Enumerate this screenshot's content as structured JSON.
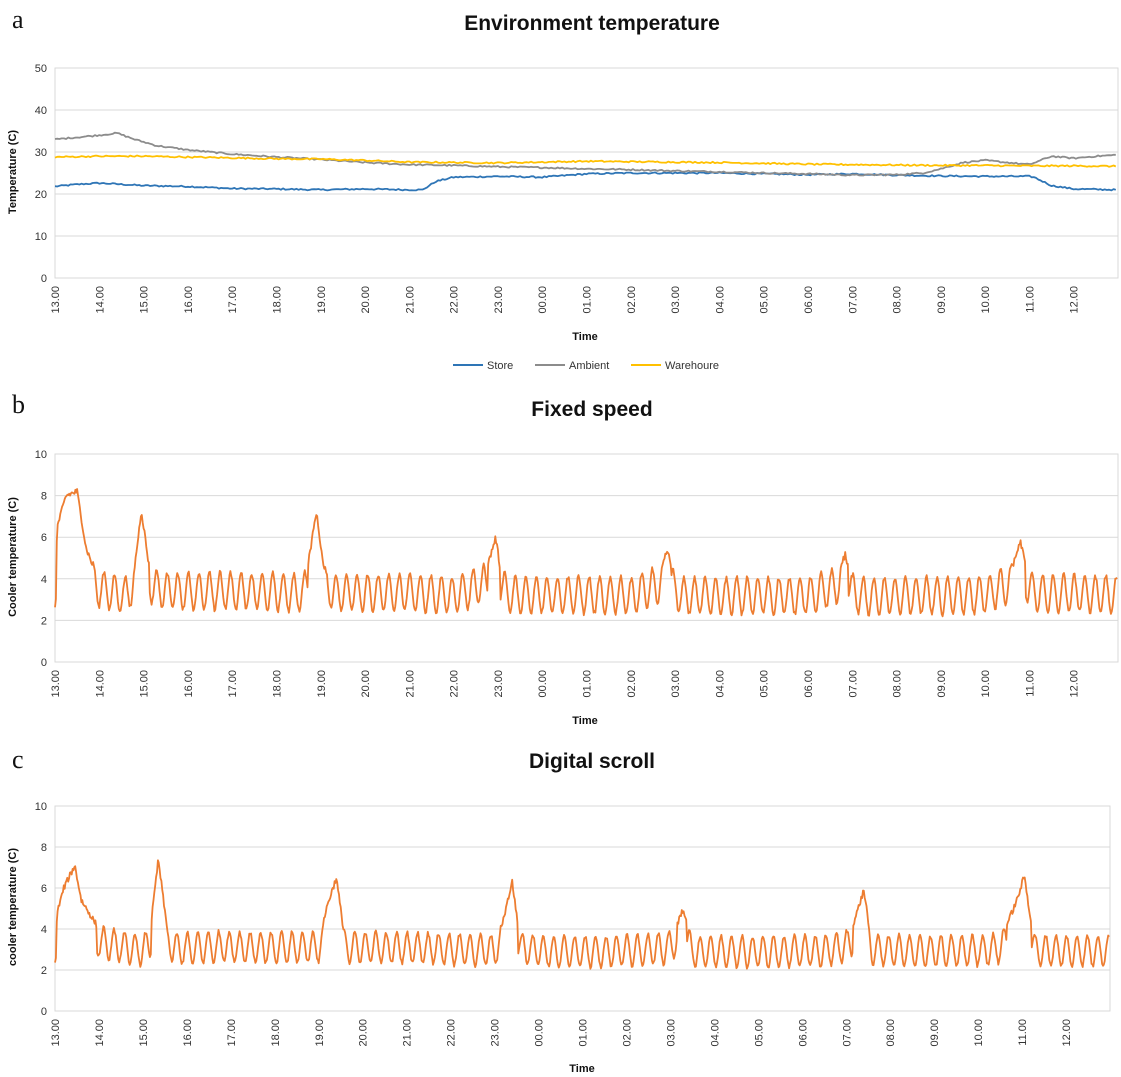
{
  "chart_data": [
    {
      "panel": "a",
      "type": "line",
      "title": "Environment temperature",
      "xlabel": "Time",
      "ylabel": "Temperature (C)",
      "ylim": [
        0,
        50
      ],
      "yticks": [
        0,
        10,
        20,
        30,
        40,
        50
      ],
      "categories": [
        "13.00",
        "14.00",
        "15.00",
        "16.00",
        "17.00",
        "18.00",
        "19.00",
        "20.00",
        "21.00",
        "22.00",
        "23.00",
        "00.00",
        "01.00",
        "02.00",
        "03.00",
        "04.00",
        "05.00",
        "06.00",
        "07.00",
        "08.00",
        "09.00",
        "10.00",
        "11.00",
        "12.00"
      ],
      "grid": true,
      "legend_position": "bottom",
      "series": [
        {
          "name": "Store",
          "color": "#2e75b6",
          "x": [
            13.0,
            13.5,
            14.0,
            14.5,
            15.0,
            16.0,
            17.0,
            18.0,
            19.0,
            20.0,
            21.0,
            21.3,
            21.6,
            22.0,
            23.0,
            24.0,
            25.0,
            26.0,
            27.0,
            28.0,
            29.0,
            30.0,
            31.0,
            32.0,
            33.0,
            34.0,
            35.0,
            35.1,
            35.5,
            36.0,
            36.98
          ],
          "y": [
            21.8,
            22.3,
            22.6,
            22.3,
            22.0,
            21.8,
            21.3,
            21.2,
            21.0,
            21.2,
            21.0,
            21.0,
            23.0,
            24.0,
            24.2,
            24.0,
            24.8,
            25.0,
            25.0,
            25.0,
            24.8,
            24.6,
            24.8,
            24.5,
            24.3,
            24.2,
            24.2,
            24.0,
            22.0,
            21.2,
            21.0
          ]
        },
        {
          "name": "Ambient",
          "color": "#8c8c8c",
          "x": [
            13.0,
            13.5,
            14.0,
            14.4,
            14.8,
            15.3,
            16.0,
            17.0,
            18.0,
            19.0,
            20.0,
            21.0,
            22.0,
            23.0,
            24.0,
            25.0,
            26.0,
            27.0,
            28.0,
            29.0,
            30.0,
            31.0,
            32.0,
            32.6,
            33.0,
            33.5,
            34.0,
            34.5,
            35.0,
            35.5,
            36.0,
            36.5,
            36.98
          ],
          "y": [
            33.0,
            33.5,
            34.0,
            34.5,
            33.0,
            31.5,
            30.5,
            29.5,
            28.8,
            28.2,
            27.5,
            27.0,
            26.8,
            26.5,
            26.3,
            26.0,
            25.8,
            25.5,
            25.3,
            25.0,
            24.8,
            24.5,
            24.6,
            25.0,
            26.0,
            27.5,
            28.0,
            27.5,
            27.0,
            29.0,
            28.5,
            29.0,
            29.3
          ]
        },
        {
          "name": "Warehoure",
          "color": "#ffc000",
          "x": [
            13.0,
            14.0,
            15.0,
            16.0,
            17.0,
            18.0,
            19.0,
            20.0,
            21.0,
            22.0,
            23.0,
            24.0,
            25.0,
            26.0,
            27.0,
            28.0,
            29.0,
            30.0,
            31.0,
            32.0,
            33.0,
            34.0,
            35.0,
            36.0,
            36.98
          ],
          "y": [
            28.8,
            29.0,
            29.0,
            28.8,
            28.6,
            28.4,
            28.3,
            28.0,
            27.6,
            27.5,
            27.4,
            27.6,
            27.8,
            27.7,
            27.6,
            27.5,
            27.3,
            27.1,
            27.0,
            26.9,
            26.8,
            26.8,
            26.7,
            26.7,
            26.6
          ]
        }
      ]
    },
    {
      "panel": "b",
      "type": "line",
      "title": "Fixed speed",
      "xlabel": "Time",
      "ylabel": "Cooler temperature (C)",
      "ylim": [
        0,
        10
      ],
      "yticks": [
        0,
        2,
        4,
        6,
        8,
        10
      ],
      "categories": [
        "13.00",
        "14.00",
        "15.00",
        "16.00",
        "17.00",
        "18.00",
        "19.00",
        "20.00",
        "21.00",
        "22.00",
        "23.00",
        "00.00",
        "01.00",
        "02.00",
        "03.00",
        "04.00",
        "05.00",
        "06.00",
        "07.00",
        "08.00",
        "09.00",
        "10.00",
        "11.00",
        "12.00"
      ],
      "grid": true,
      "series": [
        {
          "name": "",
          "color": "#ed7d31",
          "x": [
            13.0,
            13.05,
            13.25,
            13.5,
            13.7,
            14.0,
            14.4,
            14.55,
            14.8,
            14.95,
            15.15,
            15.4,
            16.0,
            17.0,
            18.0,
            18.6,
            18.9,
            19.1,
            19.3,
            20.0,
            21.0,
            22.0,
            22.75,
            22.95,
            23.1,
            23.3,
            24.0,
            25.0,
            26.0,
            26.6,
            26.85,
            27.0,
            27.2,
            28.0,
            29.0,
            30.0,
            30.6,
            30.85,
            31.0,
            31.2,
            32.0,
            33.0,
            34.0,
            34.6,
            34.8,
            35.0,
            35.2,
            36.0,
            36.98
          ],
          "y": [
            2.8,
            6.5,
            8.0,
            8.2,
            5.5,
            3.8,
            3.2,
            2.7,
            4.6,
            7.3,
            4.2,
            3.6,
            3.4,
            3.5,
            3.4,
            3.2,
            7.2,
            4.0,
            3.3,
            3.3,
            3.3,
            3.0,
            4.5,
            6.0,
            3.8,
            3.0,
            3.0,
            3.0,
            2.9,
            4.2,
            5.4,
            3.4,
            2.9,
            2.9,
            2.9,
            2.9,
            4.0,
            5.2,
            3.4,
            2.9,
            2.9,
            2.9,
            3.0,
            4.5,
            5.8,
            3.8,
            3.2,
            3.2,
            3.1
          ],
          "oscillation": {
            "low": 2.3,
            "high": 4.3
          }
        }
      ]
    },
    {
      "panel": "c",
      "type": "line",
      "title": "Digital scroll",
      "xlabel": "Time",
      "ylabel": "cooler  temperature (C)",
      "ylim": [
        0,
        10
      ],
      "yticks": [
        0,
        2,
        4,
        6,
        8,
        10
      ],
      "categories": [
        "13.00",
        "14.00",
        "15.00",
        "16.00",
        "17.00",
        "18.00",
        "19.00",
        "20.00",
        "21.00",
        "22.00",
        "23.00",
        "00.00",
        "01.00",
        "02.00",
        "03.00",
        "04.00",
        "05.00",
        "06.00",
        "07.00",
        "08.00",
        "09.00",
        "10.00",
        "11.00",
        "12.00"
      ],
      "grid": true,
      "series": [
        {
          "name": "",
          "color": "#ed7d31",
          "x": [
            13.0,
            13.05,
            13.2,
            13.45,
            13.6,
            14.0,
            14.6,
            14.95,
            15.15,
            15.35,
            15.55,
            15.8,
            16.5,
            17.5,
            18.5,
            19.0,
            19.2,
            19.4,
            19.6,
            20.5,
            21.5,
            22.5,
            23.0,
            23.2,
            23.4,
            23.6,
            24.3,
            25.3,
            26.3,
            26.9,
            27.1,
            27.3,
            27.5,
            28.5,
            29.5,
            30.5,
            31.0,
            31.2,
            31.4,
            31.6,
            32.5,
            33.5,
            34.3,
            34.5,
            34.9,
            35.05,
            35.3,
            36.0,
            36.98
          ],
          "y": [
            2.7,
            4.8,
            6.0,
            7.1,
            5.4,
            4.0,
            3.4,
            3.0,
            3.6,
            7.4,
            4.0,
            3.1,
            3.4,
            3.3,
            3.3,
            3.4,
            5.2,
            6.5,
            3.4,
            3.3,
            3.2,
            3.0,
            3.0,
            4.5,
            6.3,
            3.2,
            2.8,
            2.8,
            3.0,
            3.2,
            4.0,
            5.0,
            2.8,
            2.8,
            2.8,
            2.9,
            3.5,
            4.5,
            5.9,
            3.0,
            2.9,
            2.9,
            3.0,
            3.4,
            5.5,
            6.6,
            3.0,
            2.9,
            2.9
          ],
          "oscillation": {
            "low": 2.2,
            "high": 3.9
          }
        }
      ]
    }
  ],
  "legend": {
    "store": "Store",
    "ambient": "Ambient",
    "warehouse": "Warehoure"
  }
}
